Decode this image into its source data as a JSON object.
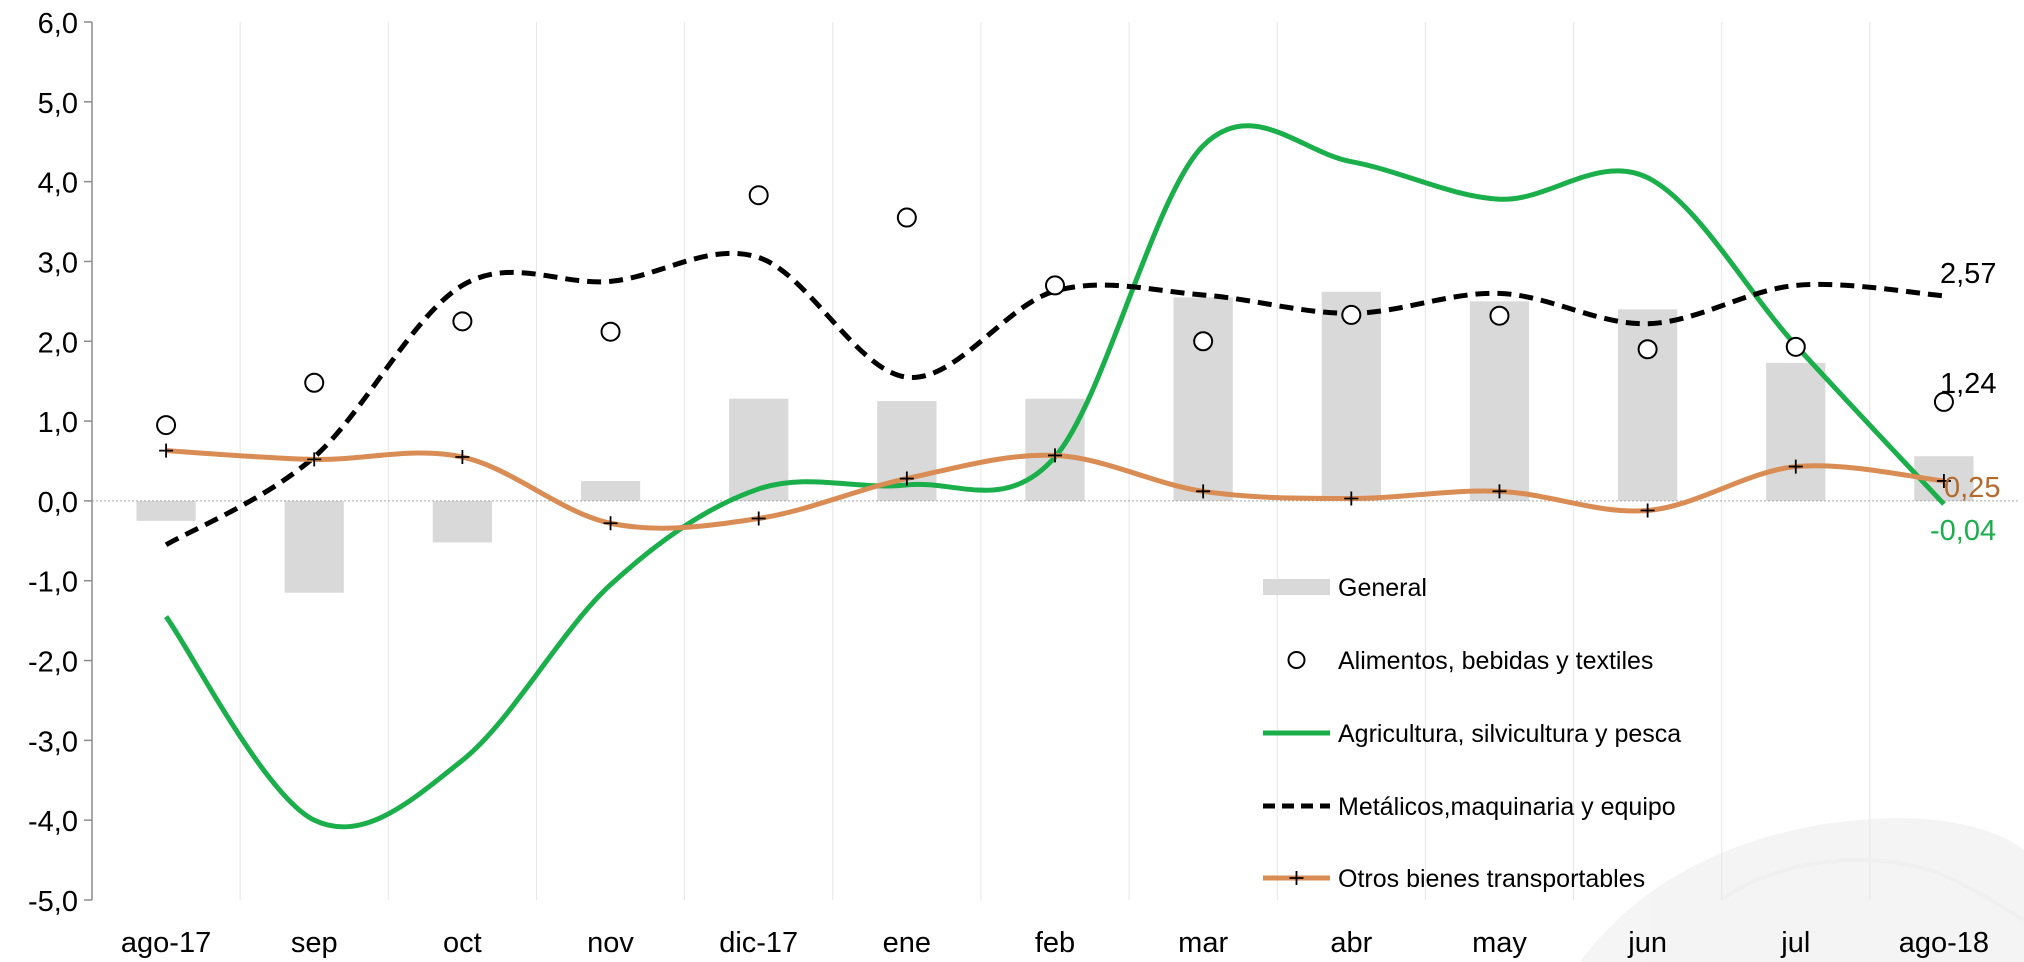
{
  "chart_data": {
    "type": "bar",
    "categories": [
      "ago-17",
      "sep",
      "oct",
      "nov",
      "dic-17",
      "ene",
      "feb",
      "mar",
      "abr",
      "may",
      "jun",
      "jul",
      "ago-18"
    ],
    "ylim": [
      -5,
      6
    ],
    "yticks": [
      -5,
      -4,
      -3,
      -2,
      -1,
      0,
      1,
      2,
      3,
      4,
      5,
      6
    ],
    "ytick_labels": [
      "-5,0",
      "-4,0",
      "-3,0",
      "-2,0",
      "-1,0",
      "0,0",
      "1,0",
      "2,0",
      "3,0",
      "4,0",
      "5,0",
      "6,0"
    ],
    "grid": "vertical",
    "legend_position": "bottom-right",
    "series": [
      {
        "name": "General",
        "type": "bar",
        "color": "#d9d9d9",
        "values": [
          -0.25,
          -1.15,
          -0.52,
          0.25,
          1.28,
          1.25,
          1.28,
          2.55,
          2.62,
          2.5,
          2.4,
          1.73,
          0.56
        ]
      },
      {
        "name": "Alimentos, bebidas y textiles",
        "type": "scatter",
        "marker": "circle",
        "color": "#000000",
        "values": [
          0.95,
          1.48,
          2.25,
          2.12,
          3.83,
          3.55,
          2.7,
          2.0,
          2.33,
          2.32,
          1.9,
          1.93,
          1.24
        ]
      },
      {
        "name": "Agricultura, silvicultura y pesca",
        "type": "line",
        "color": "#1aaf4b",
        "values": [
          -1.45,
          -4.0,
          -3.25,
          -1.05,
          0.15,
          0.2,
          0.55,
          4.45,
          4.25,
          3.78,
          4.05,
          1.95,
          -0.04
        ]
      },
      {
        "name": "Metálicos,maquinaria y equipo",
        "type": "line",
        "dash": true,
        "color": "#000000",
        "values": [
          -0.55,
          0.55,
          2.7,
          2.75,
          3.05,
          1.55,
          2.63,
          2.58,
          2.35,
          2.6,
          2.22,
          2.7,
          2.57
        ]
      },
      {
        "name": "Otros bienes transportables",
        "type": "line",
        "marker": "plus",
        "color": "#d98c53",
        "values": [
          0.63,
          0.52,
          0.55,
          -0.28,
          -0.22,
          0.28,
          0.57,
          0.12,
          0.03,
          0.12,
          -0.12,
          0.43,
          0.25
        ]
      }
    ],
    "end_labels": [
      {
        "text": "2,57",
        "series": "Metálicos,maquinaria y equipo",
        "color": "#000000"
      },
      {
        "text": "1,24",
        "series": "Alimentos, bebidas y textiles",
        "color": "#000000"
      },
      {
        "text": "0,25",
        "series": "Otros bienes transportables",
        "color": "#b36b2d"
      },
      {
        "text": "-0,04",
        "series": "Agricultura, silvicultura y pesca",
        "color": "#1aaf4b"
      }
    ]
  }
}
